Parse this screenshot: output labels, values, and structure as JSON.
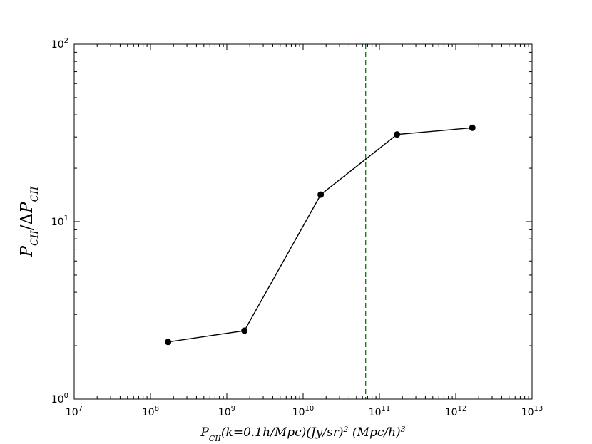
{
  "chart_data": {
    "type": "line",
    "x_scale": "log",
    "y_scale": "log",
    "xlim": [
      10000000.0,
      10000000000000.0
    ],
    "ylim": [
      1,
      100
    ],
    "x_ticks": [
      {
        "value": 10000000.0,
        "base": "10",
        "exp": "7"
      },
      {
        "value": 100000000.0,
        "base": "10",
        "exp": "8"
      },
      {
        "value": 1000000000.0,
        "base": "10",
        "exp": "9"
      },
      {
        "value": 10000000000.0,
        "base": "10",
        "exp": "10"
      },
      {
        "value": 100000000000.0,
        "base": "10",
        "exp": "11"
      },
      {
        "value": 1000000000000.0,
        "base": "10",
        "exp": "12"
      },
      {
        "value": 10000000000000.0,
        "base": "10",
        "exp": "13"
      }
    ],
    "y_ticks": [
      {
        "value": 1,
        "base": "10",
        "exp": "0"
      },
      {
        "value": 10,
        "base": "10",
        "exp": "1"
      },
      {
        "value": 100,
        "base": "10",
        "exp": "2"
      }
    ],
    "xlabel": "P_CII(k=0.1h/Mpc)(Jy/sr)^2 (Mpc/h)^3",
    "ylabel": "P_CII/ΔP_CII",
    "series": [
      {
        "color": "#000000",
        "marker": "circle",
        "x": [
          170000000.0,
          1700000000.0,
          17000000000.0,
          170000000000.0,
          1650000000000.0
        ],
        "y": [
          2.1,
          2.43,
          14.2,
          31.0,
          33.8
        ]
      }
    ],
    "vline": {
      "x": 66000000000.0,
      "color": "#007f00",
      "style": "dashed"
    },
    "grid": false
  }
}
